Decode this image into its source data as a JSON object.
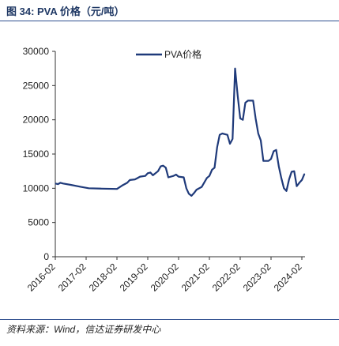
{
  "header": {
    "figure_title": "图 34:  PVA 价格（元/吨）"
  },
  "footer": {
    "source": "资料来源：Wind，信达证券研发中心"
  },
  "chart_data": {
    "type": "line",
    "title": "",
    "xlabel": "",
    "ylabel": "",
    "ylim": [
      0,
      30000
    ],
    "yticks": [
      0,
      5000,
      10000,
      15000,
      20000,
      25000,
      30000
    ],
    "xticks": [
      "2016-02",
      "2017-02",
      "2018-02",
      "2019-02",
      "2020-02",
      "2021-02",
      "2022-02",
      "2023-02",
      "2024-02"
    ],
    "grid": false,
    "legend": "top-center",
    "series_color": "#1f3a7a",
    "series": [
      {
        "name": "PVA价格",
        "points": [
          [
            "2016-02",
            10700
          ],
          [
            "2016-03",
            10600
          ],
          [
            "2016-04",
            10800
          ],
          [
            "2016-05",
            10700
          ],
          [
            "2016-08",
            10500
          ],
          [
            "2016-12",
            10200
          ],
          [
            "2017-03",
            10000
          ],
          [
            "2017-08",
            9950
          ],
          [
            "2018-02",
            9900
          ],
          [
            "2018-04",
            10400
          ],
          [
            "2018-06",
            10800
          ],
          [
            "2018-07",
            11200
          ],
          [
            "2018-09",
            11300
          ],
          [
            "2018-11",
            11700
          ],
          [
            "2019-01",
            11800
          ],
          [
            "2019-02",
            12200
          ],
          [
            "2019-03",
            12300
          ],
          [
            "2019-04",
            11900
          ],
          [
            "2019-06",
            12500
          ],
          [
            "2019-07",
            13200
          ],
          [
            "2019-08",
            13300
          ],
          [
            "2019-09",
            13000
          ],
          [
            "2019-10",
            11600
          ],
          [
            "2019-12",
            11800
          ],
          [
            "2020-01",
            12000
          ],
          [
            "2020-02",
            11700
          ],
          [
            "2020-04",
            11600
          ],
          [
            "2020-05",
            10000
          ],
          [
            "2020-06",
            9200
          ],
          [
            "2020-07",
            8900
          ],
          [
            "2020-08",
            9300
          ],
          [
            "2020-09",
            9800
          ],
          [
            "2020-11",
            10200
          ],
          [
            "2021-01",
            11500
          ],
          [
            "2021-02",
            11800
          ],
          [
            "2021-03",
            12700
          ],
          [
            "2021-04",
            13000
          ],
          [
            "2021-05",
            16000
          ],
          [
            "2021-06",
            17800
          ],
          [
            "2021-07",
            18000
          ],
          [
            "2021-09",
            17800
          ],
          [
            "2021-10",
            16500
          ],
          [
            "2021-11",
            17200
          ],
          [
            "2021-12",
            27500
          ],
          [
            "2022-01",
            23500
          ],
          [
            "2022-02",
            20200
          ],
          [
            "2022-03",
            20000
          ],
          [
            "2022-04",
            22500
          ],
          [
            "2022-05",
            22800
          ],
          [
            "2022-07",
            22800
          ],
          [
            "2022-08",
            20200
          ],
          [
            "2022-09",
            18000
          ],
          [
            "2022-10",
            17000
          ],
          [
            "2022-11",
            14000
          ],
          [
            "2023-01",
            14000
          ],
          [
            "2023-02",
            14300
          ],
          [
            "2023-03",
            15400
          ],
          [
            "2023-04",
            15600
          ],
          [
            "2023-05",
            13200
          ],
          [
            "2023-06",
            11500
          ],
          [
            "2023-07",
            10000
          ],
          [
            "2023-08",
            9600
          ],
          [
            "2023-09",
            11300
          ],
          [
            "2023-10",
            12400
          ],
          [
            "2023-11",
            12500
          ],
          [
            "2023-12",
            10300
          ],
          [
            "2024-01",
            10800
          ],
          [
            "2024-02",
            11200
          ],
          [
            "2024-03",
            12100
          ]
        ]
      }
    ]
  }
}
